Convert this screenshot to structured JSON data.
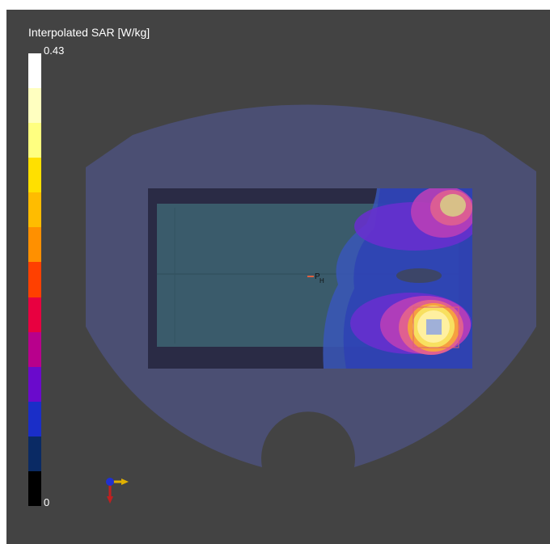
{
  "legend": {
    "title": "Interpolated SAR [W/kg]",
    "max_label": "0.43",
    "min_label": "0",
    "colors_top_to_bottom": [
      "#ffffff",
      "#ffffc0",
      "#ffff80",
      "#ffe000",
      "#ffbc00",
      "#ff9000",
      "#ff4000",
      "#e80040",
      "#b8008c",
      "#6a0acc",
      "#1a2ec8",
      "#0a2a64",
      "#000000"
    ]
  },
  "probe_marker": {
    "label": "P",
    "subscript": "H"
  },
  "colors": {
    "viewport_background": "#434343",
    "phantom_fill": "#4b4f73",
    "device_frame": "#2a2b45",
    "device_screen": "#3a5b6b",
    "hotspot_peak": "#a0b0d8"
  },
  "icons": {
    "orientation_axes": "axes-triad-icon"
  }
}
